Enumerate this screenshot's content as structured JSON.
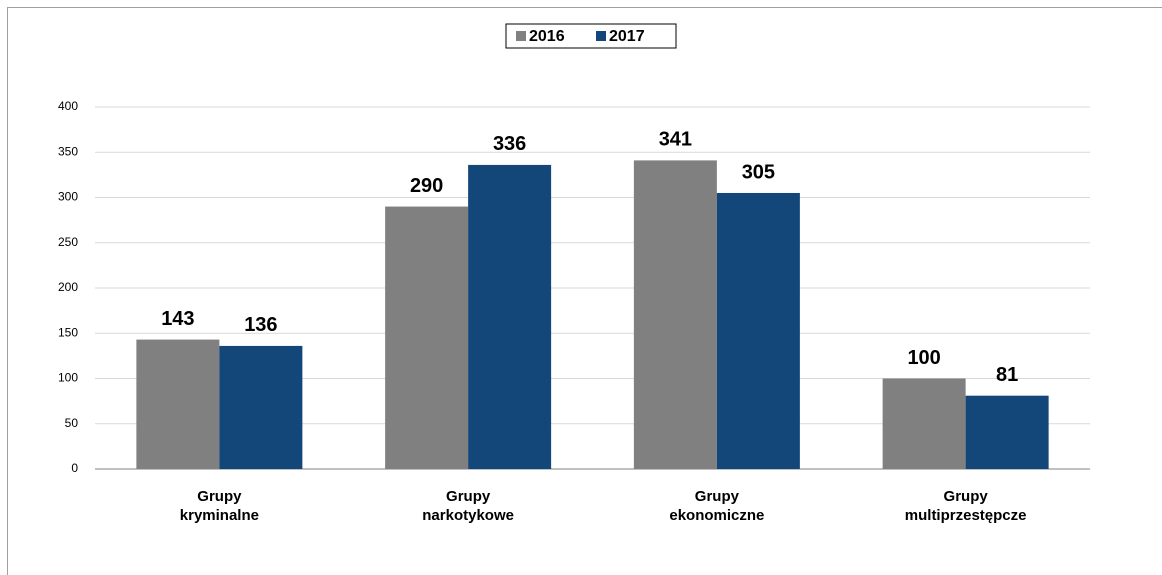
{
  "chart_data": {
    "type": "bar",
    "categories": [
      "Grupy kryminalne",
      "Grupy narkotykowe",
      "Grupy ekonomiczne",
      "Grupy multiprzestępcze"
    ],
    "series": [
      {
        "name": "2016",
        "color": "#808080",
        "values": [
          143,
          290,
          341,
          100
        ]
      },
      {
        "name": "2017",
        "color": "#134679",
        "values": [
          136,
          336,
          305,
          81
        ]
      }
    ],
    "ylim": [
      0,
      400
    ],
    "yticks": [
      0,
      50,
      100,
      150,
      200,
      250,
      300,
      350,
      400
    ],
    "grid": true,
    "legend": "top"
  }
}
